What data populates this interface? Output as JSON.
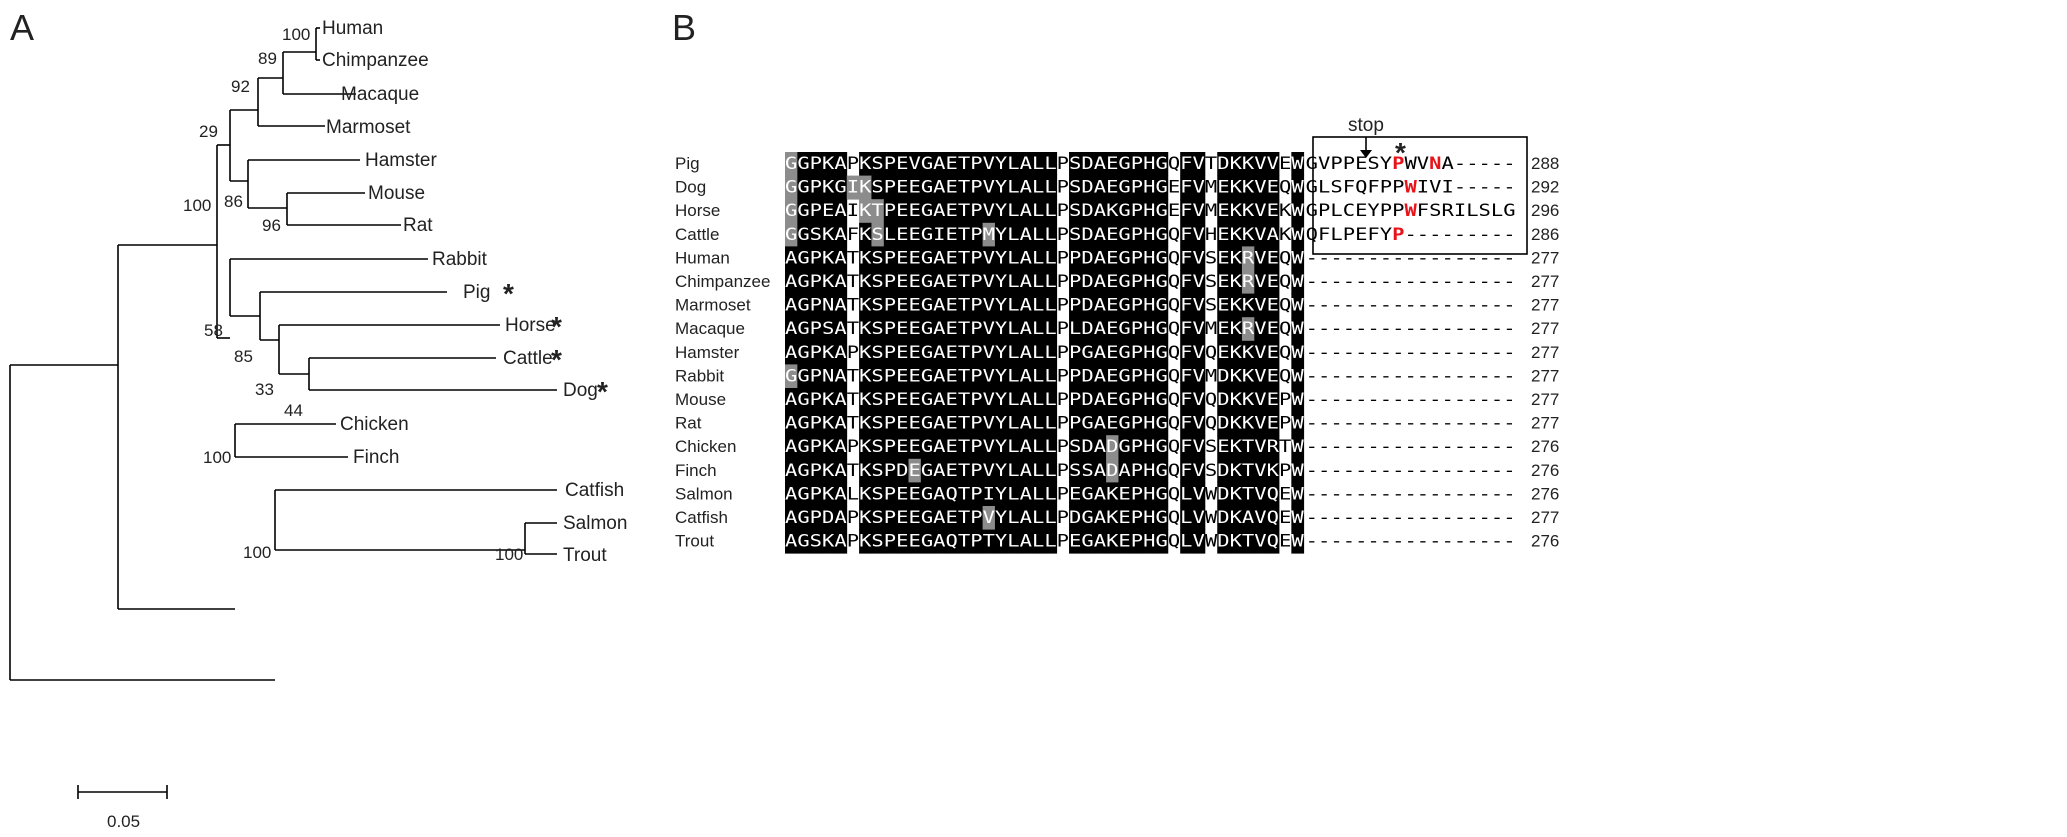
{
  "panel_a": {
    "label": "A",
    "taxa": {
      "human": "Human",
      "chimp": "Chimpanzee",
      "macaque": "Macaque",
      "marmoset": "Marmoset",
      "hamster": "Hamster",
      "mouse": "Mouse",
      "rat": "Rat",
      "rabbit": "Rabbit",
      "pig": "Pig",
      "horse": "Horse",
      "cattle": "Cattle",
      "dog": "Dog",
      "chicken": "Chicken",
      "finch": "Finch",
      "catfish": "Catfish",
      "salmon": "Salmon",
      "trout": "Trout"
    },
    "marked_taxa": [
      "pig",
      "horse",
      "cattle",
      "dog"
    ],
    "marker": "*",
    "bootstrap": {
      "human_chimp": "100",
      "hc_macaque": "89",
      "primates": "92",
      "rodent_primate": "29",
      "mouse_hamster": "86",
      "mouse_rat": "96",
      "mammals": "100",
      "rab_pig_group": "58",
      "pig_group": "85",
      "horse_group": "33",
      "cattle_dog": "44",
      "birds": "100",
      "fish": "100",
      "salmon_trout": "100"
    },
    "scale_bar": "0.05"
  },
  "panel_b": {
    "label": "B",
    "annotation": "stop",
    "marker": "*",
    "rows": [
      {
        "name": "Pig",
        "seq": "GGPKAPKSPEVGAETPVYLALLPSDAEGPHGQFVTDKKVVEW",
        "tail": "GVPPESYPWVNA-----",
        "length": "288"
      },
      {
        "name": "Dog",
        "seq": "GGPKGIKSPEEGAETPVYLALLPSDAEGPHGEFVMEKKVEQW",
        "tail": "GLSFQFPPWIVI-----",
        "length": "292"
      },
      {
        "name": "Horse",
        "seq": "GGPEAIKTPEEGAETPVYLALLPSDAKGPHGEFVMEKKVEKW",
        "tail": "GPLCEYPPWFSRILSLG",
        "length": "296"
      },
      {
        "name": "Cattle",
        "seq": "GGSKAFKSLEEGIETPMYLALLPSDAEGPHGQFVHEKKVAKW",
        "tail": "QFLPEFYP---------",
        "length": "286"
      },
      {
        "name": "Human",
        "seq": "AGPKATKSPEEGAETPVYLALLPPDAEGPHGQFVSEKRVEQW",
        "tail": "-----------------",
        "length": "277"
      },
      {
        "name": "Chimpanzee",
        "seq": "AGPKATKSPEEGAETPVYLALLPPDAEGPHGQFVSEKRVEQW",
        "tail": "-----------------",
        "length": "277"
      },
      {
        "name": "Marmoset",
        "seq": "AGPNATKSPEEGAETPVYLALLPPDAEGPHGQFVSEKKVEQW",
        "tail": "-----------------",
        "length": "277"
      },
      {
        "name": "Macaque",
        "seq": "AGPSATKSPEEGAETPVYLALLPLDAEGPHGQFVMEKRVEQW",
        "tail": "-----------------",
        "length": "277"
      },
      {
        "name": "Hamster",
        "seq": "AGPKAPKSPEEGAETPVYLALLPPGAEGPHGQFVQEKKVEQW",
        "tail": "-----------------",
        "length": "277"
      },
      {
        "name": "Rabbit",
        "seq": "GGPNATKSPEEGAETPVYLALLPPDAEGPHGQFVMDKKVEQW",
        "tail": "-----------------",
        "length": "277"
      },
      {
        "name": "Mouse",
        "seq": "AGPKATKSPEEGAETPVYLALLPPDAEGPHGQFVQDKKVEPW",
        "tail": "-----------------",
        "length": "277"
      },
      {
        "name": "Rat",
        "seq": "AGPKATKSPEEGAETPVYLALLPPGAEGPHGQFVQDKKVEPW",
        "tail": "-----------------",
        "length": "277"
      },
      {
        "name": "Chicken",
        "seq": "AGPKAPKSPEEGAETPVYLALLPSDADGPHGQFVSEKTVRTW",
        "tail": "-----------------",
        "length": "276"
      },
      {
        "name": "Finch",
        "seq": "AGPKATKSPDEGAETPVYLALLPSSADAPHGQFVSDKTVKPW",
        "tail": "-----------------",
        "length": "276"
      },
      {
        "name": "Salmon",
        "seq": "AGPKALKSPEEGAQTPIYLALLPEGAKEPHGQLVWDKTVQEW",
        "tail": "-----------------",
        "length": "276"
      },
      {
        "name": "Catfish",
        "seq": "AGPDAPKSPEEGAETPVYLALLPDGAKEPHGQLVWDKAVQEW",
        "tail": "-----------------",
        "length": "277"
      },
      {
        "name": "Trout",
        "seq": "AGSKAPKSPEEGAQTPTYLALLPEGAKEPHGQLVWDKTVQEW",
        "tail": "-----------------",
        "length": "276"
      }
    ],
    "white_columns": [
      5,
      22,
      31,
      34,
      40
    ],
    "gray_cells": [
      [
        1,
        5
      ],
      [
        1,
        6
      ],
      [
        2,
        6
      ],
      [
        2,
        7
      ],
      [
        3,
        7
      ],
      [
        3,
        16
      ],
      [
        4,
        37
      ],
      [
        5,
        37
      ],
      [
        7,
        37
      ],
      [
        9,
        0
      ],
      [
        12,
        26
      ],
      [
        13,
        10
      ],
      [
        13,
        26
      ],
      [
        15,
        16
      ],
      [
        0,
        0
      ],
      [
        1,
        0
      ],
      [
        2,
        0
      ],
      [
        3,
        0
      ]
    ],
    "colors": {
      "black": "#000000",
      "gray": "#8c8c8c",
      "red": "#e8141b"
    }
  }
}
